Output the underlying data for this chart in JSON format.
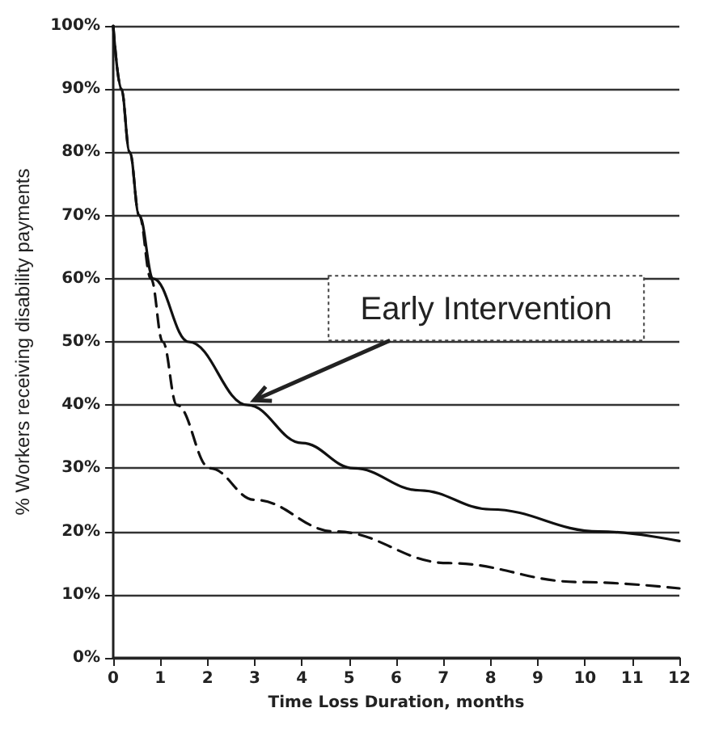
{
  "chart_data": {
    "type": "line",
    "xlabel": "Time Loss Duration, months",
    "ylabel": "% Workers receiving disability payments",
    "annotations": [
      {
        "text": "Early Intervention",
        "x": 2.85,
        "y": 40
      }
    ],
    "xlim": [
      0,
      12
    ],
    "xticks": [
      0,
      1,
      2,
      3,
      4,
      5,
      6,
      7,
      8,
      9,
      10,
      11,
      12
    ],
    "ylim": [
      0,
      100
    ],
    "yticks": [
      {
        "value": 0,
        "label": "0%"
      },
      {
        "value": 10,
        "label": "10%"
      },
      {
        "value": 20,
        "label": "20%"
      },
      {
        "value": 30,
        "label": "30%"
      },
      {
        "value": 40,
        "label": "40%"
      },
      {
        "value": 50,
        "label": "50%"
      },
      {
        "value": 60,
        "label": "60%"
      },
      {
        "value": 70,
        "label": "70%"
      },
      {
        "value": 80,
        "label": "80%"
      },
      {
        "value": 90,
        "label": "90%"
      },
      {
        "value": 100,
        "label": "100%"
      }
    ],
    "grid": "y",
    "marker": "none",
    "series": [
      {
        "color": "#111111",
        "line_style": "solid",
        "x": [
          0,
          0.17,
          0.35,
          0.55,
          0.85,
          1.6,
          2.85,
          4,
          5.1,
          6.5,
          8,
          10.3,
          12
        ],
        "values": [
          100,
          90,
          80,
          70,
          60,
          50,
          40,
          34,
          30,
          26.5,
          23.5,
          20,
          18.5
        ]
      },
      {
        "color": "#111111",
        "line_style": "dashed",
        "x": [
          0,
          0.17,
          0.35,
          0.55,
          0.8,
          1.05,
          1.35,
          2.05,
          3,
          4.7,
          7.1,
          9.9,
          12
        ],
        "values": [
          100,
          90,
          80,
          70,
          60,
          50,
          40,
          30,
          25,
          20,
          15,
          12,
          11
        ]
      }
    ]
  }
}
